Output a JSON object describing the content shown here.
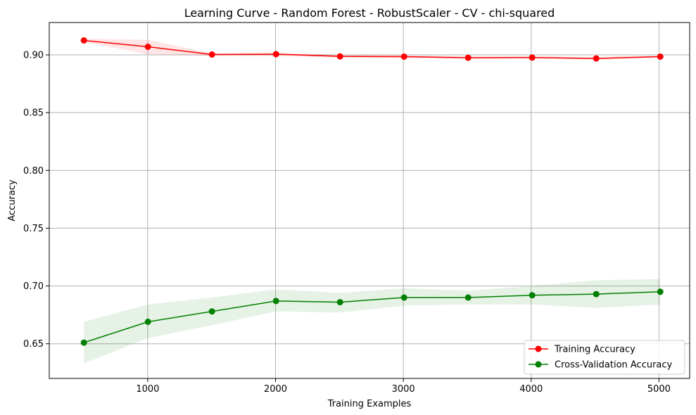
{
  "chart_data": {
    "type": "line",
    "title": "Learning Curve - Random Forest - RobustScaler - CV - chi-squared",
    "xlabel": "Training Examples",
    "ylabel": "Accuracy",
    "xlim": [
      230,
      5240
    ],
    "ylim": [
      0.62,
      0.928
    ],
    "xticks": [
      1000,
      2000,
      3000,
      4000,
      5000
    ],
    "yticks": [
      0.65,
      0.7,
      0.75,
      0.8,
      0.85,
      0.9
    ],
    "ytick_labels": [
      "0.65",
      "0.70",
      "0.75",
      "0.80",
      "0.85",
      "0.90"
    ],
    "grid": true,
    "legend_position": "bottom-right",
    "x": [
      501,
      1002,
      1503,
      2004,
      2505,
      3006,
      3507,
      4008,
      4509,
      5010
    ],
    "series": [
      {
        "name": "Training Accuracy",
        "color": "#ff0000",
        "band_color": "#ffcccc",
        "values": [
          0.9125,
          0.907,
          0.9003,
          0.9006,
          0.8987,
          0.8985,
          0.8975,
          0.8977,
          0.8969,
          0.8985
        ],
        "lower": [
          0.911,
          0.9005,
          0.899,
          0.899,
          0.8975,
          0.8972,
          0.8965,
          0.8967,
          0.8958,
          0.8975
        ],
        "upper": [
          0.914,
          0.913,
          0.9015,
          0.9022,
          0.8998,
          0.8998,
          0.8985,
          0.8987,
          0.898,
          0.8995
        ]
      },
      {
        "name": "Cross-Validation Accuracy",
        "color": "#008000",
        "band_color": "#c8e6c8",
        "values": [
          0.651,
          0.669,
          0.678,
          0.687,
          0.686,
          0.69,
          0.69,
          0.692,
          0.693,
          0.695
        ],
        "lower": [
          0.633,
          0.655,
          0.666,
          0.678,
          0.677,
          0.683,
          0.684,
          0.684,
          0.681,
          0.684
        ],
        "upper": [
          0.669,
          0.684,
          0.69,
          0.697,
          0.694,
          0.698,
          0.696,
          0.7,
          0.705,
          0.706
        ]
      }
    ]
  }
}
